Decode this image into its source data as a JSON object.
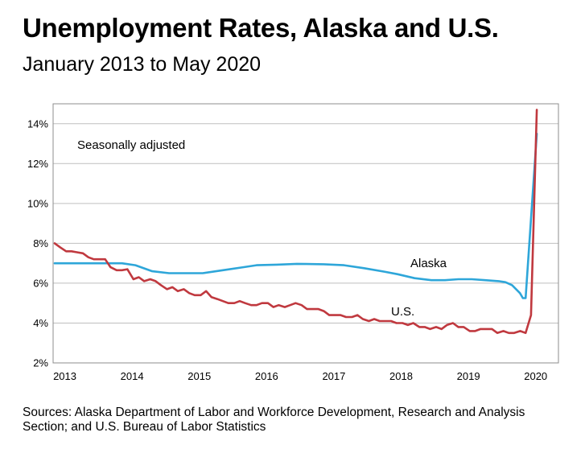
{
  "title": "Unemployment Rates, Alaska and U.S.",
  "subtitle": "January 2013 to May 2020",
  "source": "Sources: Alaska Department of Labor and Workforce Development, Research and Analysis Section; and U.S. Bureau of Labor Statistics",
  "chart_data": {
    "type": "line",
    "title": "Unemployment Rates, Alaska and U.S.",
    "subtitle": "January 2013 to May 2020",
    "annotation": "Seasonally adjusted",
    "ylim": [
      2,
      15
    ],
    "yticks": [
      2,
      4,
      6,
      8,
      10,
      12,
      14
    ],
    "ytick_labels": [
      "2%",
      "4%",
      "6%",
      "8%",
      "10%",
      "12%",
      "14%"
    ],
    "xlim": [
      2013.0,
      2020.4167
    ],
    "xticks": [
      2013,
      2014,
      2015,
      2016,
      2017,
      2018,
      2019,
      2020
    ],
    "xtick_labels": [
      "2013",
      "2014",
      "2015",
      "2016",
      "2017",
      "2018",
      "2019",
      "2020"
    ],
    "grid": true,
    "legend": "inline labels",
    "series": [
      {
        "name": "Alaska",
        "color": "#2ea6d9",
        "values": [
          [
            2013.0,
            7.0
          ],
          [
            2013.5,
            7.0
          ],
          [
            2014.0,
            7.0
          ],
          [
            2014.2,
            6.9
          ],
          [
            2014.45,
            6.6
          ],
          [
            2014.7,
            6.5
          ],
          [
            2015.0,
            6.5
          ],
          [
            2015.2,
            6.5
          ],
          [
            2015.5,
            6.65
          ],
          [
            2015.8,
            6.8
          ],
          [
            2016.0,
            6.9
          ],
          [
            2016.3,
            6.93
          ],
          [
            2016.6,
            6.97
          ],
          [
            2017.0,
            6.95
          ],
          [
            2017.3,
            6.9
          ],
          [
            2017.6,
            6.75
          ],
          [
            2017.9,
            6.58
          ],
          [
            2018.1,
            6.45
          ],
          [
            2018.35,
            6.25
          ],
          [
            2018.6,
            6.15
          ],
          [
            2018.8,
            6.15
          ],
          [
            2019.0,
            6.2
          ],
          [
            2019.2,
            6.2
          ],
          [
            2019.4,
            6.15
          ],
          [
            2019.6,
            6.1
          ],
          [
            2019.7,
            6.05
          ],
          [
            2019.8,
            5.9
          ],
          [
            2019.917,
            5.5
          ],
          [
            2019.96,
            5.25
          ],
          [
            2020.0,
            5.25
          ],
          [
            2020.1667,
            13.5
          ]
        ]
      },
      {
        "name": "U.S.",
        "color": "#c0393f",
        "values": [
          [
            2013.0,
            8.0
          ],
          [
            2013.08,
            7.8
          ],
          [
            2013.17,
            7.6
          ],
          [
            2013.25,
            7.6
          ],
          [
            2013.33,
            7.55
          ],
          [
            2013.42,
            7.5
          ],
          [
            2013.5,
            7.3
          ],
          [
            2013.58,
            7.2
          ],
          [
            2013.67,
            7.2
          ],
          [
            2013.75,
            7.2
          ],
          [
            2013.83,
            6.8
          ],
          [
            2013.92,
            6.65
          ],
          [
            2014.0,
            6.65
          ],
          [
            2014.08,
            6.7
          ],
          [
            2014.17,
            6.2
          ],
          [
            2014.25,
            6.3
          ],
          [
            2014.33,
            6.1
          ],
          [
            2014.42,
            6.2
          ],
          [
            2014.5,
            6.1
          ],
          [
            2014.58,
            5.9
          ],
          [
            2014.67,
            5.7
          ],
          [
            2014.75,
            5.8
          ],
          [
            2014.83,
            5.6
          ],
          [
            2014.92,
            5.7
          ],
          [
            2015.0,
            5.5
          ],
          [
            2015.08,
            5.4
          ],
          [
            2015.17,
            5.4
          ],
          [
            2015.25,
            5.6
          ],
          [
            2015.33,
            5.3
          ],
          [
            2015.42,
            5.2
          ],
          [
            2015.5,
            5.1
          ],
          [
            2015.58,
            5.0
          ],
          [
            2015.67,
            5.0
          ],
          [
            2015.75,
            5.1
          ],
          [
            2015.83,
            5.0
          ],
          [
            2015.92,
            4.9
          ],
          [
            2016.0,
            4.9
          ],
          [
            2016.08,
            5.0
          ],
          [
            2016.17,
            5.0
          ],
          [
            2016.25,
            4.8
          ],
          [
            2016.33,
            4.9
          ],
          [
            2016.42,
            4.8
          ],
          [
            2016.5,
            4.9
          ],
          [
            2016.58,
            5.0
          ],
          [
            2016.67,
            4.9
          ],
          [
            2016.75,
            4.7
          ],
          [
            2016.83,
            4.7
          ],
          [
            2016.92,
            4.7
          ],
          [
            2017.0,
            4.6
          ],
          [
            2017.08,
            4.4
          ],
          [
            2017.17,
            4.4
          ],
          [
            2017.25,
            4.4
          ],
          [
            2017.33,
            4.3
          ],
          [
            2017.42,
            4.3
          ],
          [
            2017.5,
            4.4
          ],
          [
            2017.58,
            4.2
          ],
          [
            2017.67,
            4.1
          ],
          [
            2017.75,
            4.2
          ],
          [
            2017.83,
            4.1
          ],
          [
            2017.92,
            4.1
          ],
          [
            2018.0,
            4.1
          ],
          [
            2018.08,
            4.0
          ],
          [
            2018.17,
            4.0
          ],
          [
            2018.25,
            3.9
          ],
          [
            2018.33,
            4.0
          ],
          [
            2018.42,
            3.8
          ],
          [
            2018.5,
            3.8
          ],
          [
            2018.58,
            3.7
          ],
          [
            2018.67,
            3.8
          ],
          [
            2018.75,
            3.7
          ],
          [
            2018.83,
            3.9
          ],
          [
            2018.92,
            4.0
          ],
          [
            2019.0,
            3.8
          ],
          [
            2019.08,
            3.8
          ],
          [
            2019.17,
            3.6
          ],
          [
            2019.25,
            3.6
          ],
          [
            2019.33,
            3.7
          ],
          [
            2019.42,
            3.7
          ],
          [
            2019.5,
            3.7
          ],
          [
            2019.58,
            3.5
          ],
          [
            2019.67,
            3.6
          ],
          [
            2019.75,
            3.5
          ],
          [
            2019.83,
            3.5
          ],
          [
            2019.92,
            3.6
          ],
          [
            2020.0,
            3.5
          ],
          [
            2020.08,
            4.4
          ],
          [
            2020.1667,
            14.7
          ]
        ]
      }
    ],
    "series_labels": [
      "Alaska",
      "U.S."
    ]
  }
}
